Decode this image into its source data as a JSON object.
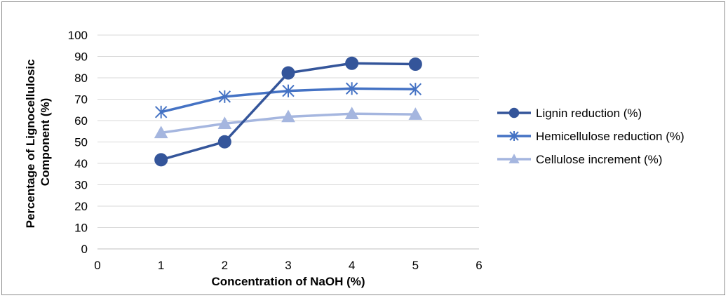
{
  "chart_data": {
    "type": "line",
    "xlabel": "Concentration of NaOH (%)",
    "ylabel_lines": [
      "Percentage of Lignocellulosic",
      "Component (%)"
    ],
    "xlim": [
      0,
      6
    ],
    "ylim": [
      0,
      100
    ],
    "x_ticks": [
      0,
      1,
      2,
      3,
      4,
      5,
      6
    ],
    "y_ticks": [
      0,
      10,
      20,
      30,
      40,
      50,
      60,
      70,
      80,
      90,
      100
    ],
    "grid": true,
    "legend_position": "right",
    "series": [
      {
        "name": "Lignin reduction (%)",
        "marker": "circle",
        "color": "#34559a",
        "x": [
          1,
          2,
          3,
          4,
          5
        ],
        "values": [
          41.7,
          50.1,
          82.3,
          86.8,
          86.4
        ]
      },
      {
        "name": "Hemicellulose reduction (%)",
        "marker": "asterisk",
        "color": "#4472c4",
        "x": [
          1,
          2,
          3,
          4,
          5
        ],
        "values": [
          64.0,
          71.2,
          73.9,
          75.0,
          74.7
        ]
      },
      {
        "name": "Cellulose increment (%)",
        "marker": "triangle",
        "color": "#a5b6df",
        "x": [
          1,
          2,
          3,
          4,
          5
        ],
        "values": [
          54.3,
          58.6,
          61.8,
          63.2,
          62.9
        ]
      }
    ]
  }
}
